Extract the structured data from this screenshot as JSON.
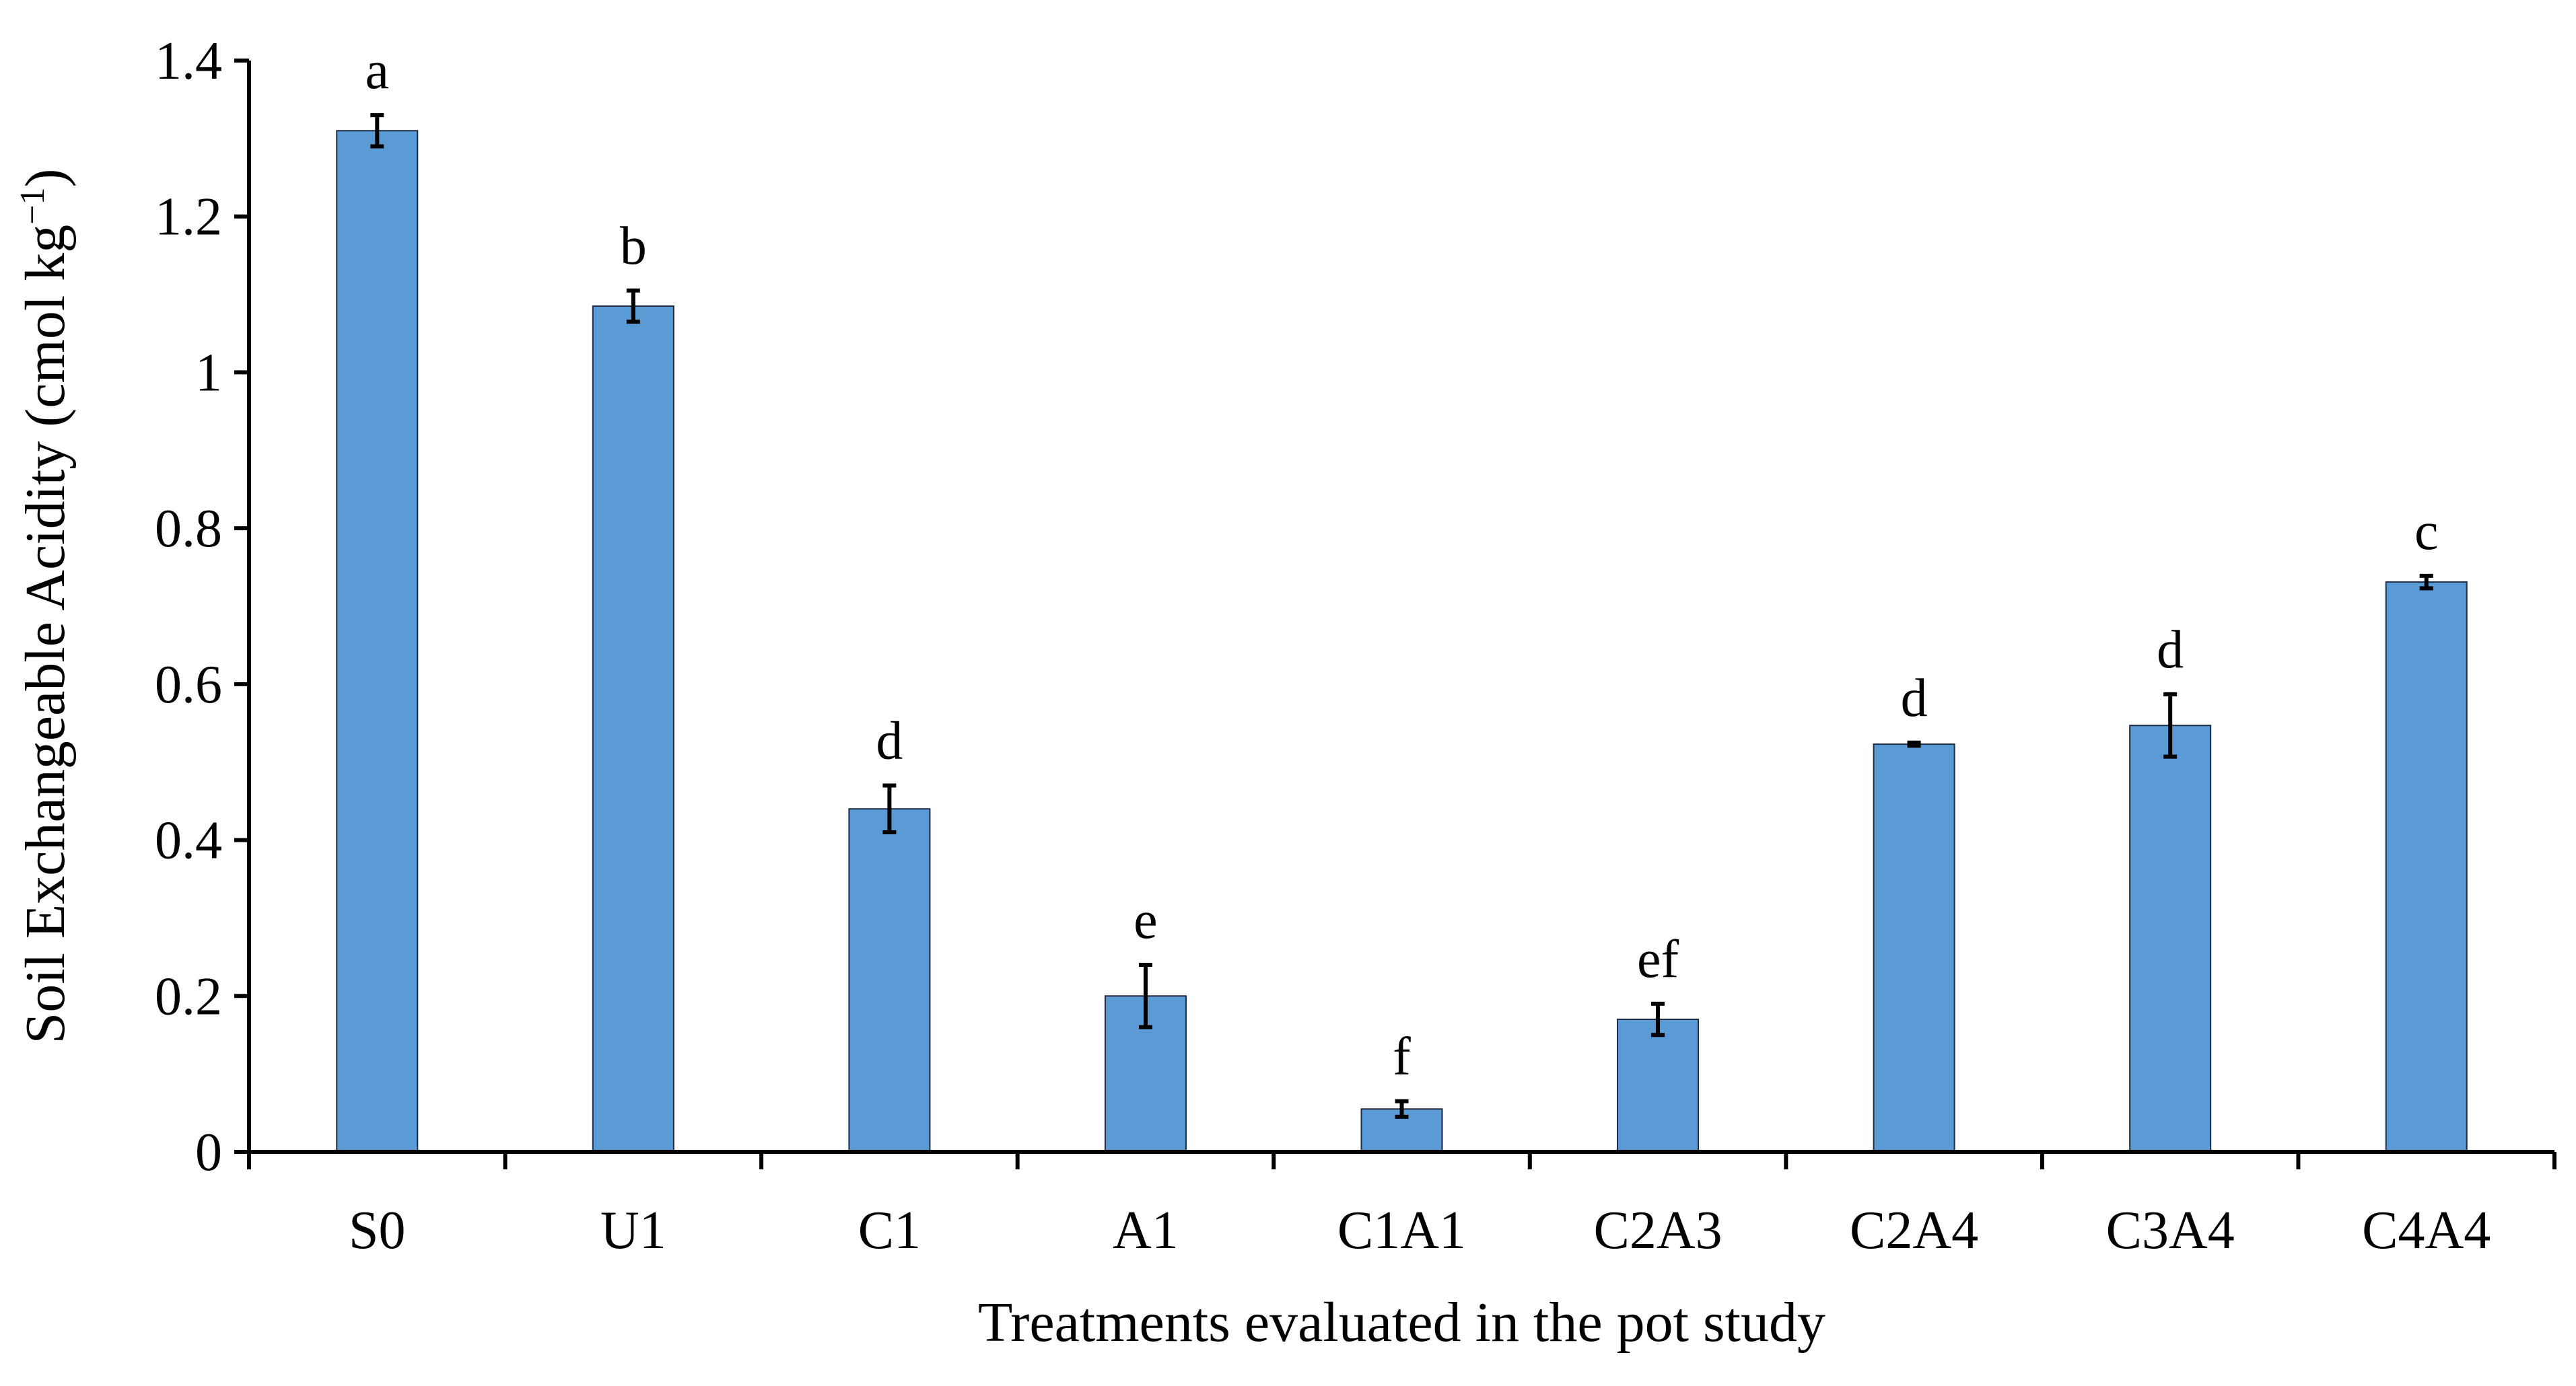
{
  "chart_data": {
    "type": "bar",
    "title": "",
    "xlabel": "Treatments evaluated in the pot study",
    "ylabel_main": "Soil Exchangeable Acidity (cmol kg",
    "ylabel_sup": "−1",
    "ylabel_close": ")",
    "ylim": [
      0,
      1.4
    ],
    "yticks": [
      0,
      0.2,
      0.4,
      0.6,
      0.8,
      1,
      1.2,
      1.4
    ],
    "ytick_labels": [
      "0",
      "0.2",
      "0.4",
      "0.6",
      "0.8",
      "1",
      "1.2",
      "1.4"
    ],
    "categories": [
      "S0",
      "U1",
      "C1",
      "A1",
      "C1A1",
      "C2A3",
      "C2A4",
      "C3A4",
      "C4A4"
    ],
    "values": [
      1.31,
      1.085,
      0.44,
      0.2,
      0.055,
      0.17,
      0.523,
      0.547,
      0.731
    ],
    "errors": [
      0.02,
      0.02,
      0.03,
      0.04,
      0.01,
      0.02,
      0.002,
      0.04,
      0.008
    ],
    "significance_letters": [
      "a",
      "b",
      "d",
      "e",
      "f",
      "ef",
      "d",
      "d",
      "c"
    ],
    "bar_color": "#5b9bd5",
    "grid": false,
    "legend": "none"
  }
}
